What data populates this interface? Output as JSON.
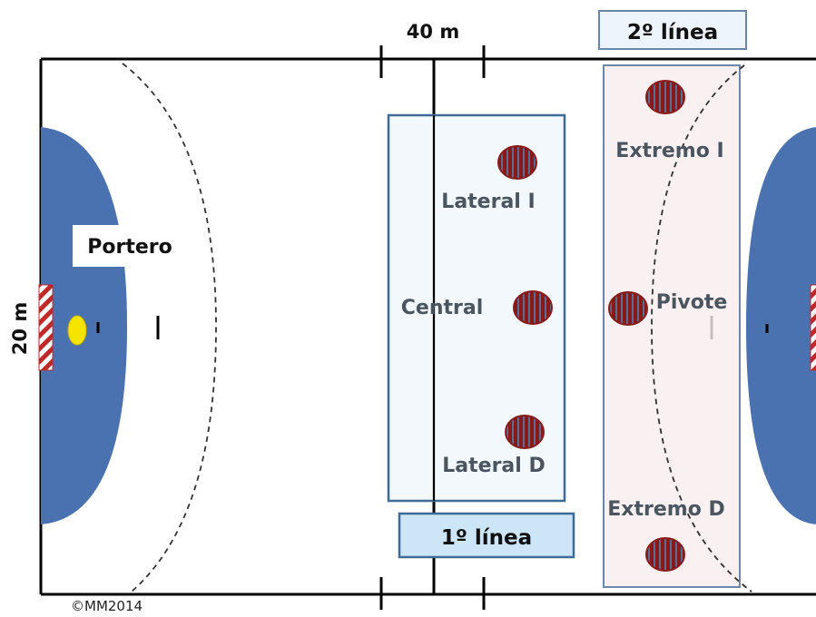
{
  "dimensions": {
    "length_label": "40 m",
    "width_label": "20 m"
  },
  "lines": {
    "first_line_label": "1º línea",
    "second_line_label": "2º línea"
  },
  "positions": {
    "goalkeeper": "Portero",
    "left_back": "Lateral I",
    "center_back": "Central",
    "right_back": "Lateral D",
    "left_wing": "Extremo I",
    "pivot": "Pivote",
    "right_wing": "Extremo D"
  },
  "copyright": "©MM2014",
  "colors": {
    "goal_area": "#4a72b0",
    "first_line_box_fill": "#eef5fb",
    "first_line_box_border": "#3d6a96",
    "second_line_box_fill": "#f8eeee",
    "second_line_box_border": "#6a86a8",
    "first_line_label_fill": "#cce6f7",
    "second_line_label_fill": "#eef4fb",
    "player_fill": "#8a1a1a",
    "player_stripe": "#5a6d92",
    "ball": "#f5e300"
  },
  "icons": {
    "player": "striped-player-disc",
    "ball": "ball-dot",
    "goal": "striped-goal-post"
  }
}
